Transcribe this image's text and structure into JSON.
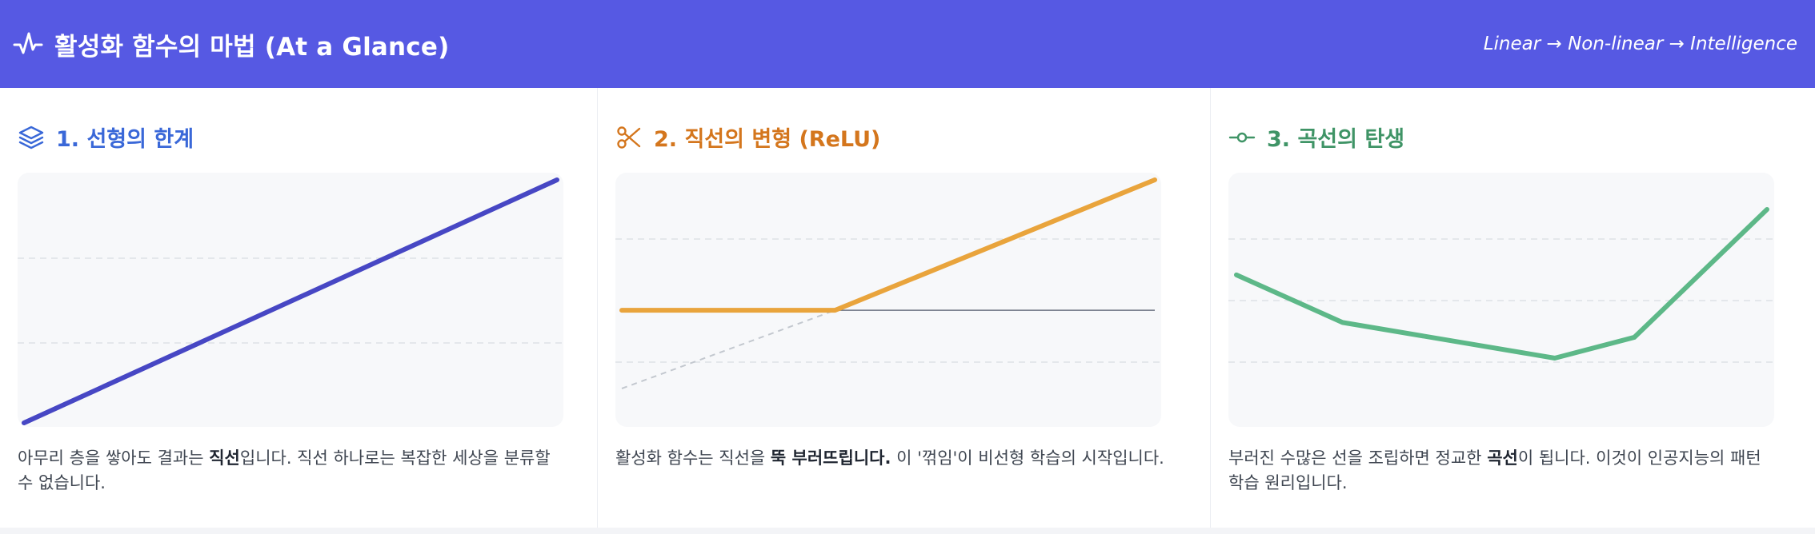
{
  "header": {
    "title": "활성화 함수의 마법 (At a Glance)",
    "subtitle": "Linear → Non-linear → Intelligence",
    "icon": "activity-icon",
    "background_color": "#5659e3"
  },
  "panels": [
    {
      "title": "1. 선형의 한계",
      "icon": "layers-icon",
      "color": "#3a68d8",
      "line_color": "#4747c4",
      "text_before": "아무리 층을 쌓아도 결과는 ",
      "text_bold": "직선",
      "text_after": "입니다. 직선 하나로는 복잡한 세상을 분류할 수 없습니다."
    },
    {
      "title": "2. 직선의 변형 (ReLU)",
      "icon": "scissors-icon",
      "color": "#d4761d",
      "line_color": "#e9a43c",
      "text_before": "활성화 함수는 직선을 ",
      "text_bold": "뚝 부러뜨립니다.",
      "text_after": " 이 '꺾임'이 비선형 학습의 시작입니다."
    },
    {
      "title": "3. 곡선의 탄생",
      "icon": "commit-icon",
      "color": "#3f9466",
      "line_color": "#5db888",
      "text_before": "부러진 수많은 선을 조립하면 정교한 ",
      "text_bold": "곡선",
      "text_after": "이 됩니다. 이것이 인공지능의 패턴 학습 원리입니다."
    }
  ],
  "chart_data": [
    {
      "type": "line",
      "title": "",
      "x": [
        0,
        1
      ],
      "series": [
        {
          "values": [
            0,
            1
          ]
        }
      ],
      "grid": true
    },
    {
      "type": "line",
      "title": "",
      "x": [
        -1,
        0,
        1.5
      ],
      "series": [
        {
          "values": [
            0,
            0,
            1.0
          ]
        },
        {
          "values": [
            -0.6,
            0,
            1.0
          ],
          "style": "dashed"
        }
      ],
      "baseline": 0,
      "grid": true
    },
    {
      "type": "line",
      "title": "",
      "x": [
        0,
        2,
        6,
        7.5,
        10
      ],
      "series": [
        {
          "values": [
            1.4,
            0.6,
            0,
            0.35,
            2.5
          ]
        }
      ],
      "grid": true
    }
  ]
}
